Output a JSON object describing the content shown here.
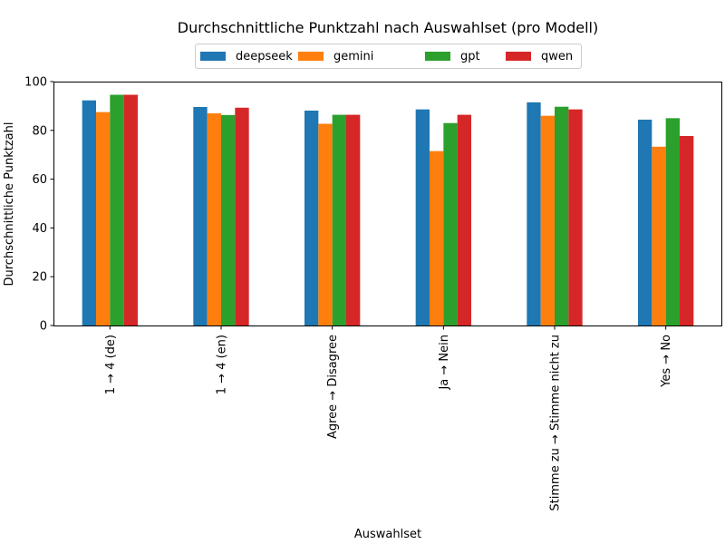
{
  "chart_data": {
    "type": "bar",
    "title": "Durchschnittliche Punktzahl nach Auswahlset (pro Modell)",
    "xlabel": "Auswahlset",
    "ylabel": "Durchschnittliche Punktzahl",
    "ylim": [
      0,
      100
    ],
    "yticks": [
      "0",
      "20",
      "40",
      "60",
      "80",
      "100"
    ],
    "categories": [
      "1 → 4 (de)",
      "1 → 4 (en)",
      "Agree → Disagree",
      "Ja → Nein",
      "Stimme zu → Stimme nicht zu",
      "Yes → No"
    ],
    "legend_position": "top-center",
    "grid": false,
    "series": [
      {
        "name": "deepseek",
        "color": "#1f77b4",
        "values": [
          92.3,
          89.6,
          88.1,
          88.6,
          91.5,
          84.4
        ]
      },
      {
        "name": "gemini",
        "color": "#ff7f0e",
        "values": [
          87.5,
          87.0,
          82.7,
          71.5,
          86.0,
          73.3
        ]
      },
      {
        "name": "gpt",
        "color": "#2ca02c",
        "values": [
          94.6,
          86.3,
          86.4,
          83.0,
          89.7,
          85.0
        ]
      },
      {
        "name": "qwen",
        "color": "#d62728",
        "values": [
          94.6,
          89.3,
          86.4,
          86.4,
          88.6,
          77.7
        ]
      }
    ]
  }
}
